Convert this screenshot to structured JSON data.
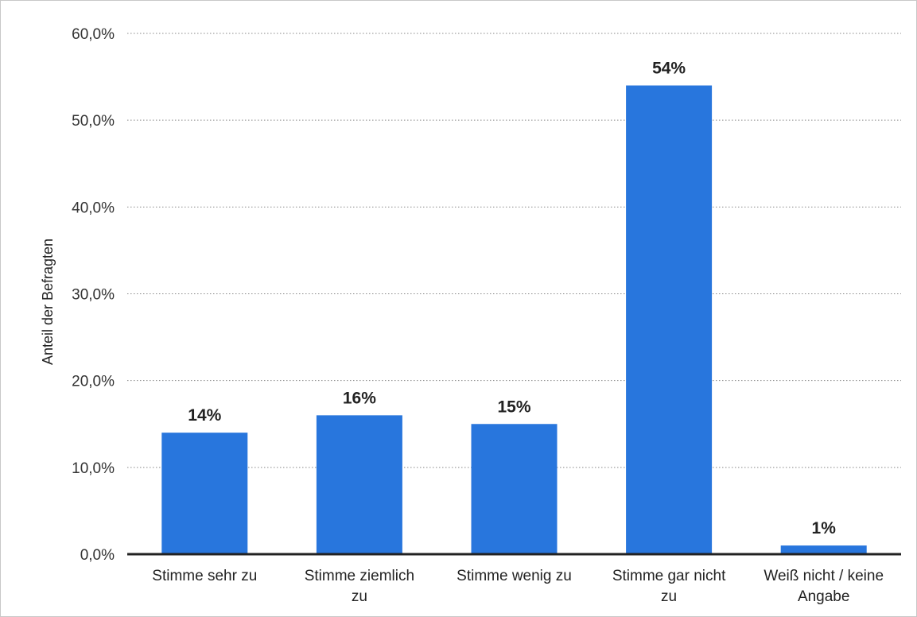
{
  "chart_data": {
    "type": "bar",
    "categories": [
      [
        "Stimme sehr zu"
      ],
      [
        "Stimme ziemlich",
        "zu"
      ],
      [
        "Stimme wenig zu"
      ],
      [
        "Stimme gar nicht",
        "zu"
      ],
      [
        "Weiß nicht / keine",
        "Angabe"
      ]
    ],
    "values": [
      14,
      16,
      15,
      54,
      1
    ],
    "value_labels": [
      "14%",
      "16%",
      "15%",
      "54%",
      "1%"
    ],
    "ylabel": "Anteil der Befragten",
    "xlabel": "",
    "ylim": [
      0,
      60
    ],
    "yticks": [
      0,
      10,
      20,
      30,
      40,
      50,
      60
    ],
    "ytick_labels": [
      "0,0%",
      "10,0%",
      "20,0%",
      "30,0%",
      "40,0%",
      "50,0%",
      "60,0%"
    ],
    "grid": true,
    "bar_color": "#2876dd",
    "axis_color": "#222222",
    "grid_color": "#888888"
  }
}
